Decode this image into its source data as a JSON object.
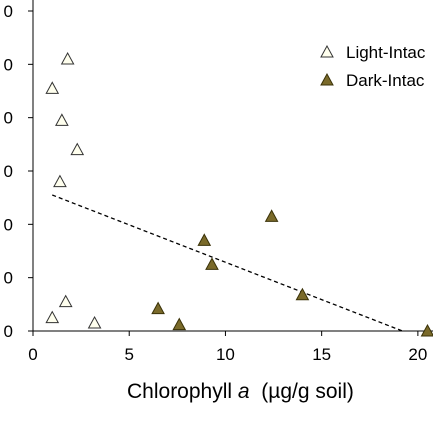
{
  "chart_data": {
    "type": "scatter",
    "xlabel_parts": [
      "Chlorophyll ",
      "a",
      "  (µg/g soil)"
    ],
    "xlim": [
      0,
      20.5
    ],
    "ylim": [
      0,
      6
    ],
    "x_ticks": [
      0,
      5,
      10,
      15,
      20
    ],
    "x_tick_labels": [
      "0",
      "5",
      "10",
      "15",
      "20"
    ],
    "y_ticks": [
      0,
      1,
      2,
      3,
      4,
      5,
      6
    ],
    "y_tick_labels": [
      "0",
      "0",
      "0",
      "0",
      "0",
      "0",
      "0"
    ],
    "grid": false,
    "legend_position": "top-right",
    "series": [
      {
        "name": "Light-Intac",
        "marker": "open-triangle",
        "color": "#ffffee",
        "edge": "#333333",
        "points": [
          {
            "x": 1.0,
            "y": 0.25
          },
          {
            "x": 1.7,
            "y": 0.55
          },
          {
            "x": 3.2,
            "y": 0.15
          },
          {
            "x": 1.4,
            "y": 2.8
          },
          {
            "x": 2.3,
            "y": 3.4
          },
          {
            "x": 1.5,
            "y": 3.95
          },
          {
            "x": 1.0,
            "y": 4.55
          },
          {
            "x": 1.8,
            "y": 5.1
          }
        ]
      },
      {
        "name": "Dark-Intac",
        "marker": "filled-triangle",
        "color": "#7a6a2a",
        "edge": "#3a3208",
        "points": [
          {
            "x": 6.5,
            "y": 0.42
          },
          {
            "x": 7.6,
            "y": 0.12
          },
          {
            "x": 8.9,
            "y": 1.7
          },
          {
            "x": 9.3,
            "y": 1.25
          },
          {
            "x": 12.4,
            "y": 2.15
          },
          {
            "x": 14.0,
            "y": 0.68
          },
          {
            "x": 20.5,
            "y": 0.0
          }
        ]
      }
    ],
    "trendline": {
      "style": "dashed",
      "color": "#000000",
      "x": [
        1.0,
        19.2
      ],
      "y": [
        2.55,
        0.0
      ]
    }
  }
}
